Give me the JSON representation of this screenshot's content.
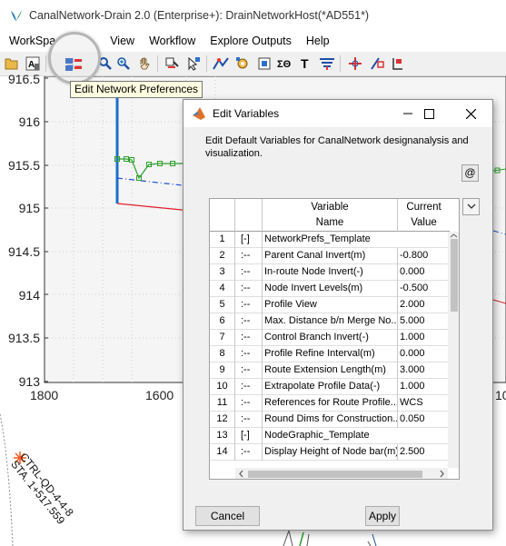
{
  "window": {
    "title": "CanalNetwork-Drain 2.0  (Enterprise+): DrainNetworkHost(*AD551*)",
    "icon": "app-logo-icon"
  },
  "menu": [
    "WorkSpa",
    "",
    "View",
    "Workflow",
    "Explore Outputs",
    "Help"
  ],
  "toolbar": {
    "icons": [
      "open-folder-icon",
      "text-import-icon",
      "network-preferences-icon",
      "zoom-icon",
      "zoom-in-icon",
      "pan-hand-icon",
      "add-node-icon",
      "select-icon",
      "route-icon",
      "settings-icon",
      "grid-icon",
      "sigma-icon",
      "text-tool-icon",
      "profile-icon",
      "crosshair-icon",
      "node-edit-icon",
      "marker-icon"
    ],
    "tooltip": "Edit Network Preferences"
  },
  "plot": {
    "y_ticks": [
      "916.5",
      "916",
      "915.5",
      "915",
      "914.5",
      "914",
      "913.5",
      "913"
    ],
    "x_ticks": [
      "1800",
      "1600",
      "10"
    ],
    "colors": {
      "green": "#2ca02c",
      "red": "#e0202a",
      "blue": "#1f4fcf",
      "blue_line": "#1a6fd0",
      "grid": "#d0d0d0"
    }
  },
  "map": {
    "node_label": "CTRL-QD-4-4-8",
    "station_label": "STA. 1+517.559",
    "marker_color": "#ff5a1f"
  },
  "dialog": {
    "title": "Edit Variables",
    "description": "Edit Default Variables for CanalNetwork designanalysis and visualization.",
    "at_button": "@",
    "columns": {
      "name_line1": "Variable",
      "name_line2": "Name",
      "value_line1": "Current",
      "value_line2": "Value"
    },
    "rows": [
      {
        "num": "1",
        "tree": "[-]",
        "name": "NetworkPrefs_Template",
        "value": "",
        "group": true
      },
      {
        "num": "2",
        "tree": ":--",
        "name": "Parent Canal Invert(m)",
        "value": "-0.800"
      },
      {
        "num": "3",
        "tree": ":--",
        "name": "In-route Node Invert(-)",
        "value": "0.000"
      },
      {
        "num": "4",
        "tree": ":--",
        "name": "Node Invert Levels(m)",
        "value": "-0.500"
      },
      {
        "num": "5",
        "tree": ":--",
        "name": "Profile View",
        "value": "2.000"
      },
      {
        "num": "6",
        "tree": ":--",
        "name": "Max. Distance b/n Merge No...",
        "value": "5.000"
      },
      {
        "num": "7",
        "tree": ":--",
        "name": "Control Branch Invert(-)",
        "value": "1.000"
      },
      {
        "num": "8",
        "tree": ":--",
        "name": "Profile Refine Interval(m)",
        "value": "0.000"
      },
      {
        "num": "9",
        "tree": ":--",
        "name": "Route Extension Length(m)",
        "value": "3.000"
      },
      {
        "num": "10",
        "tree": ":--",
        "name": "Extrapolate Profile Data(-)",
        "value": "1.000"
      },
      {
        "num": "11",
        "tree": ":--",
        "name": "References for Route Profile...",
        "value": "WCS"
      },
      {
        "num": "12",
        "tree": ":--",
        "name": "Round Dims for Construction...",
        "value": "0.050"
      },
      {
        "num": "13",
        "tree": "[-]",
        "name": "NodeGraphic_Template",
        "value": "",
        "group": true
      },
      {
        "num": "14",
        "tree": ":--",
        "name": "Display Height of Node bar(m)",
        "value": "2.500"
      }
    ],
    "cancel_label": "Cancel",
    "apply_label": "Apply"
  }
}
